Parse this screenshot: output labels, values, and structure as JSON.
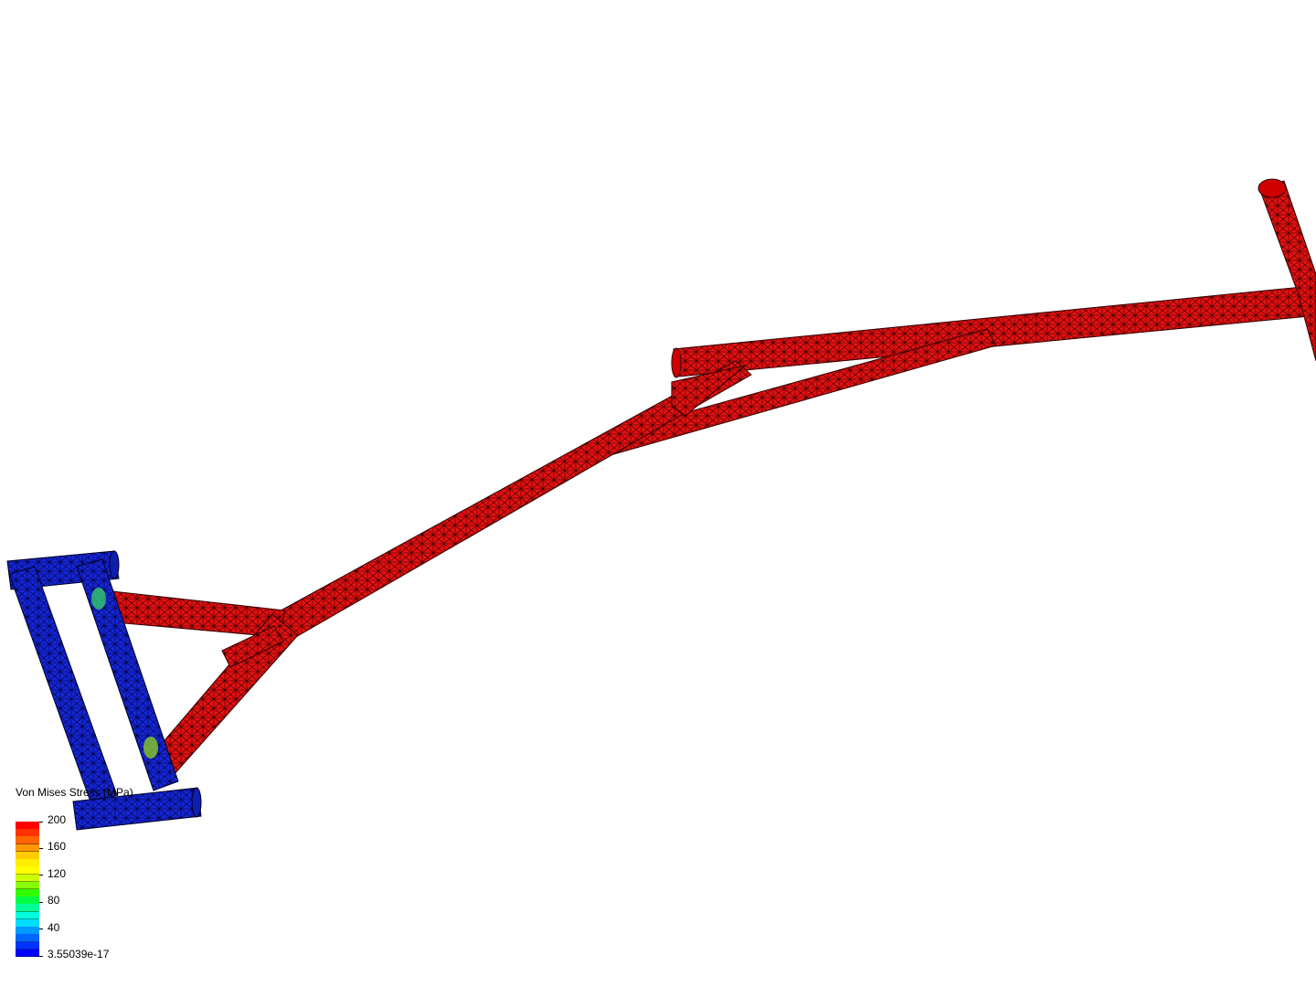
{
  "legend": {
    "title": "Von Mises Stress (MPa)",
    "labels": [
      "200",
      "160",
      "120",
      "80",
      "40",
      "3.55039e-17"
    ],
    "color_bands": [
      "#ff0000",
      "#ff3300",
      "#ff6600",
      "#ff9900",
      "#ffcc00",
      "#ffee00",
      "#ffff00",
      "#ccff00",
      "#88ff00",
      "#33ff00",
      "#00ff44",
      "#00ff99",
      "#00ffdd",
      "#00ddff",
      "#0099ff",
      "#0066ff",
      "#0033ff",
      "#0000ff"
    ]
  },
  "colors": {
    "high_stress": "#e51010",
    "low_stress": "#1426d6",
    "mesh_lines": "#000000",
    "background": "#ffffff"
  }
}
